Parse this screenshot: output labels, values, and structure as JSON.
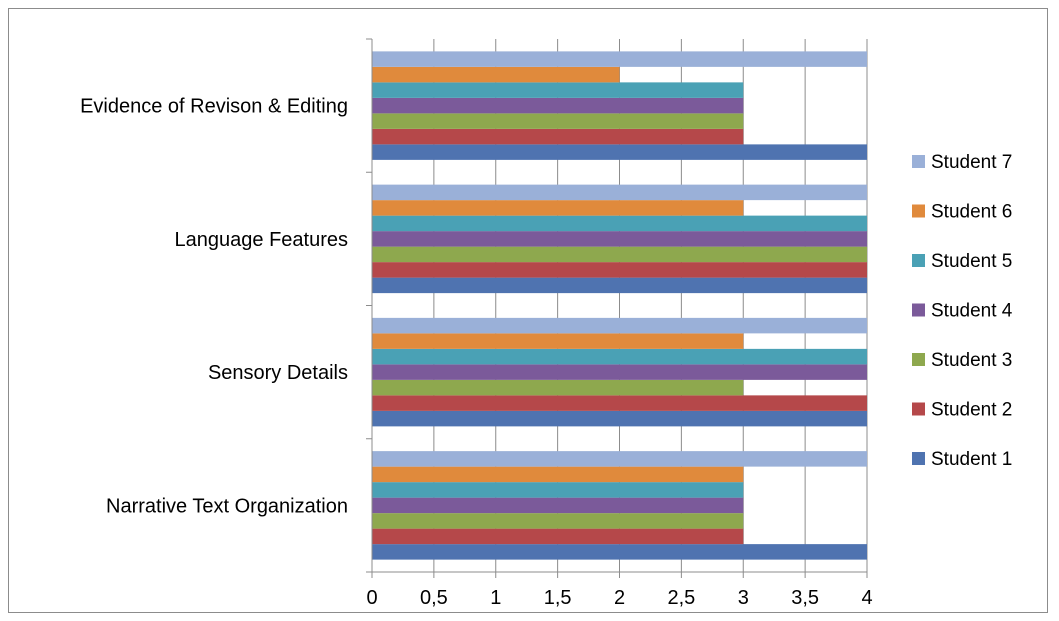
{
  "chart_data": {
    "type": "bar",
    "orientation": "horizontal",
    "categories": [
      "Narrative Text Organization",
      "Sensory Details",
      "Language Features",
      "Evidence of Revison & Editing"
    ],
    "series": [
      {
        "name": "Student 1",
        "color": "#4f73b0",
        "values": [
          4,
          4,
          4,
          4
        ]
      },
      {
        "name": "Student 2",
        "color": "#b5484a",
        "values": [
          3,
          4,
          4,
          3
        ]
      },
      {
        "name": "Student 3",
        "color": "#8ea84e",
        "values": [
          3,
          3,
          4,
          3
        ]
      },
      {
        "name": "Student 4",
        "color": "#7b5a9a",
        "values": [
          3,
          4,
          4,
          3
        ]
      },
      {
        "name": "Student 5",
        "color": "#4aa1b5",
        "values": [
          3,
          4,
          4,
          3
        ]
      },
      {
        "name": "Student 6",
        "color": "#e08a3c",
        "values": [
          3,
          3,
          3,
          2
        ]
      },
      {
        "name": "Student 7",
        "color": "#9ab0d8",
        "values": [
          4,
          4,
          4,
          4
        ]
      }
    ],
    "x_ticks": [
      "0",
      "0,5",
      "1",
      "1,5",
      "2",
      "2,5",
      "3",
      "3,5",
      "4"
    ],
    "xlim": [
      0,
      4
    ],
    "grid": "vertical",
    "legend_position": "right",
    "gridline_color": "#8c8c8c"
  }
}
